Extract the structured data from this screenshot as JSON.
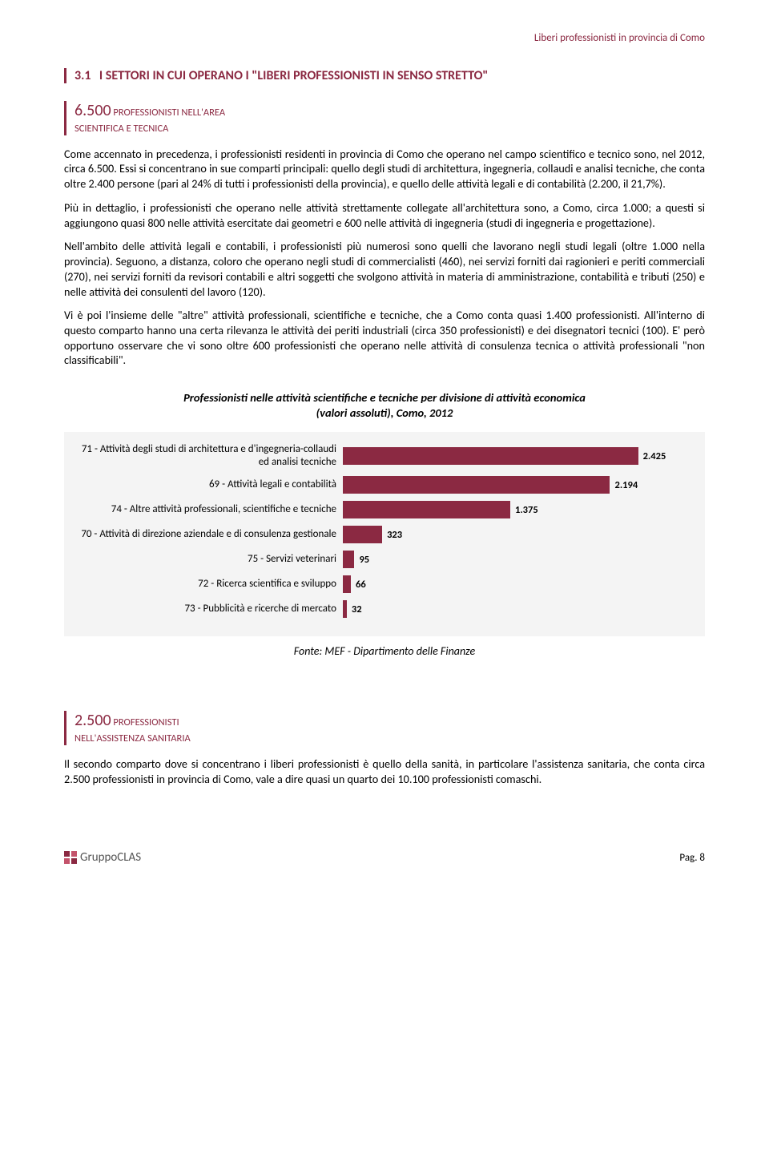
{
  "header": {
    "running": "Liberi professionisti in provincia di Como"
  },
  "section": {
    "number": "3.1",
    "title": "I SETTORI IN CUI OPERANO I \"LIBERI PROFESSIONISTI IN SENSO STRETTO\""
  },
  "sub1": {
    "bignum": "6.500",
    "caps1": " PROFESSIONISTI NELL'AREA",
    "caps2": "SCIENTIFICA E TECNICA"
  },
  "paras": {
    "p1": "Come accennato in precedenza, i professionisti residenti in provincia di Como che operano nel campo scientifico e tecnico sono, nel 2012, circa 6.500. Essi si concentrano in sue comparti principali: quello degli studi di architettura, ingegneria, collaudi e analisi tecniche, che conta oltre 2.400 persone (pari al 24% di tutti i professionisti della provincia), e quello delle attività legali e di contabilità (2.200, il 21,7%).",
    "p2": "Più in dettaglio, i professionisti che operano nelle attività strettamente collegate all'architettura sono, a Como, circa 1.000; a questi si aggiungono quasi 800 nelle attività esercitate dai geometri e 600 nelle attività di ingegneria (studi di ingegneria e progettazione).",
    "p3": "Nell'ambito delle attività legali e contabili, i professionisti più numerosi sono quelli che lavorano negli studi legali (oltre 1.000 nella provincia). Seguono, a distanza, coloro che operano negli studi di commercialisti (460), nei servizi forniti dai ragionieri e periti commerciali (270), nei servizi forniti da revisori contabili e altri soggetti che svolgono attività in materia di amministrazione, contabilità e tributi (250) e nelle attività dei consulenti del lavoro (120).",
    "p4": "Vi è poi l'insieme delle \"altre\" attività professionali, scientifiche e tecniche, che a Como conta quasi 1.400 professionisti. All'interno di questo comparto hanno una certa rilevanza le attività dei periti industriali (circa 350 professionisti) e dei disegnatori tecnici (100). E' però opportuno osservare che vi sono oltre 600 professionisti che operano nelle attività di consulenza tecnica o attività professionali \"non classificabili\"."
  },
  "chart": {
    "title_l1": "Professionisti nelle attività scientifiche e tecniche per divisione di attività economica",
    "title_l2": "(valori assoluti), Como, 2012",
    "bar_color": "#8b2942",
    "bg_color": "#f4f4f4",
    "max_value": 2500,
    "rows": [
      {
        "label": "71 - Attività degli studi di architettura e d'ingegneria-collaudi ed analisi tecniche",
        "value": 2425,
        "value_text": "2.425"
      },
      {
        "label": "69 - Attività legali e contabilità",
        "value": 2194,
        "value_text": "2.194"
      },
      {
        "label": "74 - Altre attività professionali, scientifiche e tecniche",
        "value": 1375,
        "value_text": "1.375"
      },
      {
        "label": "70 - Attività di direzione aziendale e di consulenza gestionale",
        "value": 323,
        "value_text": "323"
      },
      {
        "label": "75 - Servizi veterinari",
        "value": 95,
        "value_text": "95"
      },
      {
        "label": "72 - Ricerca scientifica e sviluppo",
        "value": 66,
        "value_text": "66"
      },
      {
        "label": "73 - Pubblicità e ricerche di mercato",
        "value": 32,
        "value_text": "32"
      }
    ],
    "source": "Fonte: MEF - Dipartimento delle Finanze"
  },
  "sub2": {
    "bignum": "2.500",
    "caps1": " PROFESSIONISTI",
    "caps2": "NELL'ASSISTENZA SANITARIA"
  },
  "paras2": {
    "p1": "Il secondo comparto dove si concentrano i liberi professionisti è quello della sanità, in particolare l'assistenza sanitaria, che conta circa 2.500 professionisti in provincia di Como, vale a dire quasi un quarto dei 10.100 professionisti comaschi."
  },
  "footer": {
    "logo_text": "GruppoCLAS",
    "page": "Pag. 8"
  }
}
